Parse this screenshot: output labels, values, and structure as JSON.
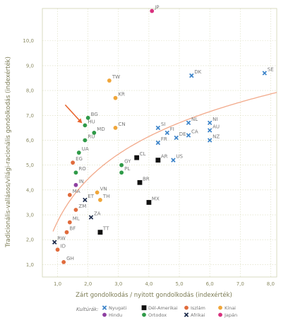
{
  "chart_data": {
    "type": "scatter",
    "xlabel": "Zárt gondolkodás / nyitott gondolkodás  (indexérték)",
    "ylabel": "Tradicionális-vallásos/világi-racionális gondolkodás  (indexérték)",
    "xlim": [
      0.5,
      8.2
    ],
    "ylim": [
      0.5,
      11.3
    ],
    "x_ticks": [
      "1,0",
      "2,0",
      "3,0",
      "4,0",
      "5,0",
      "6,0",
      "7,0",
      "8,0"
    ],
    "y_ticks": [
      "1,0",
      "2,0",
      "3,0",
      "4,0",
      "5,0",
      "6,0",
      "7,0",
      "8,0",
      "9,0",
      "10,0"
    ],
    "grid": true,
    "legend_position": "bottom",
    "legend_title": "Kultúrák:",
    "categories": [
      {
        "name": "Nyugati",
        "color": "#3b83c9",
        "marker": "x"
      },
      {
        "name": "Dél-Amerikai",
        "color": "#111111",
        "marker": "square"
      },
      {
        "name": "Iszlám",
        "color": "#e06b3c",
        "marker": "circle"
      },
      {
        "name": "Kínai",
        "color": "#f0a63a",
        "marker": "circle"
      },
      {
        "name": "Hindu",
        "color": "#8e3fa1",
        "marker": "circle"
      },
      {
        "name": "Ortodox",
        "color": "#2f9a48",
        "marker": "circle"
      },
      {
        "name": "Afrikai",
        "color": "#1b2a4a",
        "marker": "x"
      },
      {
        "name": "Japán",
        "color": "#d8317e",
        "marker": "circle"
      }
    ],
    "points": [
      {
        "label": "SE",
        "x": 7.8,
        "y": 8.7,
        "culture": "Nyugati"
      },
      {
        "label": "DK",
        "x": 5.4,
        "y": 8.6,
        "culture": "Nyugati"
      },
      {
        "label": "NI",
        "x": 6.0,
        "y": 6.7,
        "culture": "Nyugati"
      },
      {
        "label": "NL",
        "x": 5.3,
        "y": 6.7,
        "culture": "Nyugati"
      },
      {
        "label": "SI",
        "x": 4.3,
        "y": 6.5,
        "culture": "Nyugati"
      },
      {
        "label": "FI",
        "x": 4.6,
        "y": 6.3,
        "culture": "Nyugati"
      },
      {
        "label": "CA",
        "x": 5.3,
        "y": 6.2,
        "culture": "Nyugati"
      },
      {
        "label": "AU",
        "x": 6.0,
        "y": 6.4,
        "culture": "Nyugati"
      },
      {
        "label": "NZ",
        "x": 6.0,
        "y": 6.0,
        "culture": "Nyugati"
      },
      {
        "label": "DE",
        "x": 4.9,
        "y": 6.1,
        "culture": "Nyugati"
      },
      {
        "label": "FR",
        "x": 4.3,
        "y": 5.9,
        "culture": "Nyugati"
      },
      {
        "label": "US",
        "x": 4.8,
        "y": 5.2,
        "culture": "Nyugati"
      },
      {
        "label": "AR",
        "x": 4.3,
        "y": 5.2,
        "culture": "Dél-Amerikai"
      },
      {
        "label": "CL",
        "x": 3.6,
        "y": 5.3,
        "culture": "Dél-Amerikai"
      },
      {
        "label": "BR",
        "x": 3.7,
        "y": 4.3,
        "culture": "Dél-Amerikai"
      },
      {
        "label": "MX",
        "x": 4.0,
        "y": 3.5,
        "culture": "Dél-Amerikai"
      },
      {
        "label": "TT",
        "x": 2.4,
        "y": 2.3,
        "culture": "Dél-Amerikai"
      },
      {
        "label": "EG",
        "x": 1.5,
        "y": 5.1,
        "culture": "Iszlám"
      },
      {
        "label": "MA",
        "x": 1.4,
        "y": 3.8,
        "culture": "Iszlám"
      },
      {
        "label": "ZM",
        "x": 1.6,
        "y": 3.2,
        "culture": "Iszlám"
      },
      {
        "label": "ML",
        "x": 1.4,
        "y": 2.7,
        "culture": "Iszlám"
      },
      {
        "label": "BF",
        "x": 1.3,
        "y": 2.3,
        "culture": "Iszlám"
      },
      {
        "label": "ID",
        "x": 1.0,
        "y": 1.6,
        "culture": "Iszlám"
      },
      {
        "label": "GH",
        "x": 1.2,
        "y": 1.1,
        "culture": "Iszlám"
      },
      {
        "label": "TW",
        "x": 2.7,
        "y": 8.4,
        "culture": "Kínai"
      },
      {
        "label": "KR",
        "x": 2.9,
        "y": 7.7,
        "culture": "Kínai"
      },
      {
        "label": "CN",
        "x": 2.9,
        "y": 6.5,
        "culture": "Kínai"
      },
      {
        "label": "VN",
        "x": 2.3,
        "y": 3.9,
        "culture": "Kínai"
      },
      {
        "label": "TH",
        "x": 2.4,
        "y": 3.6,
        "culture": "Kínai"
      },
      {
        "label": "IN",
        "x": 1.6,
        "y": 4.2,
        "culture": "Hindu"
      },
      {
        "label": "BG",
        "x": 2.0,
        "y": 6.9,
        "culture": "Ortodox"
      },
      {
        "label": "HU",
        "x": 1.9,
        "y": 6.6,
        "culture": "Ortodox"
      },
      {
        "label": "MD",
        "x": 2.2,
        "y": 6.3,
        "culture": "Ortodox"
      },
      {
        "label": "RU",
        "x": 1.9,
        "y": 6.0,
        "culture": "Ortodox"
      },
      {
        "label": "UA",
        "x": 1.7,
        "y": 5.5,
        "culture": "Ortodox"
      },
      {
        "label": "RO",
        "x": 1.6,
        "y": 4.7,
        "culture": "Ortodox"
      },
      {
        "label": "GY",
        "x": 3.1,
        "y": 5.0,
        "culture": "Ortodox"
      },
      {
        "label": "PL",
        "x": 3.1,
        "y": 4.7,
        "culture": "Ortodox"
      },
      {
        "label": "ET",
        "x": 1.9,
        "y": 3.6,
        "culture": "Afrikai"
      },
      {
        "label": "ZA",
        "x": 2.1,
        "y": 2.9,
        "culture": "Afrikai"
      },
      {
        "label": "RW",
        "x": 0.9,
        "y": 1.9,
        "culture": "Afrikai"
      },
      {
        "label": "JP",
        "x": 4.1,
        "y": 11.2,
        "culture": "Japán"
      }
    ],
    "trendline": {
      "type": "logarithmic",
      "color": "#f2a98a"
    },
    "annotation": {
      "type": "arrow",
      "color": "#e8652e",
      "target": "HU"
    }
  }
}
